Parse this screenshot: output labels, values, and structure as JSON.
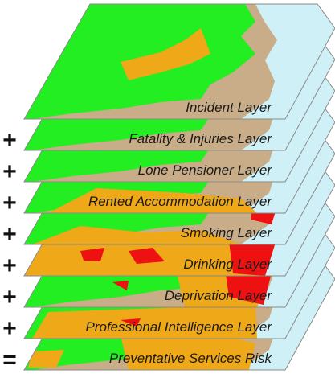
{
  "layers": [
    {
      "label": "Incident Layer"
    },
    {
      "label": "Fatality & Injuries Layer"
    },
    {
      "label": "Lone Pensioner Layer"
    },
    {
      "label": "Rented Accommodation Layer"
    },
    {
      "label": "Smoking Layer"
    },
    {
      "label": "Drinking Layer"
    },
    {
      "label": "Deprivation Layer"
    },
    {
      "label": "Professional Intelligence Layer"
    },
    {
      "label": "Preventative Services Risk"
    }
  ],
  "operators": [
    "+",
    "+",
    "+",
    "+",
    "+",
    "+",
    "+",
    "="
  ]
}
